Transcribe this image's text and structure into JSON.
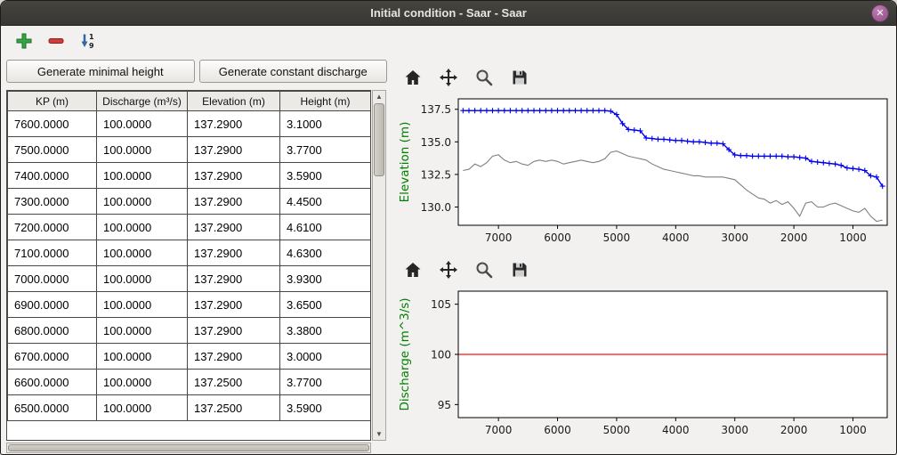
{
  "window": {
    "title": "Initial condition - Saar - Saar",
    "close_glyph": "✕"
  },
  "main_toolbar": {
    "icons": [
      "add-plus-icon",
      "remove-minus-icon",
      "sort-numeric-icon"
    ],
    "sort_top": "1",
    "sort_bottom": "9"
  },
  "left_panel": {
    "buttons": {
      "minimal_height": "Generate minimal height",
      "constant_discharge": "Generate constant discharge"
    },
    "table": {
      "columns": [
        "KP (m)",
        "Discharge (m³/s)",
        "Elevation (m)",
        "Height (m)"
      ],
      "rows": [
        [
          "7600.0000",
          "100.0000",
          "137.2900",
          "3.1000"
        ],
        [
          "7500.0000",
          "100.0000",
          "137.2900",
          "3.7700"
        ],
        [
          "7400.0000",
          "100.0000",
          "137.2900",
          "3.5900"
        ],
        [
          "7300.0000",
          "100.0000",
          "137.2900",
          "4.4500"
        ],
        [
          "7200.0000",
          "100.0000",
          "137.2900",
          "4.6100"
        ],
        [
          "7100.0000",
          "100.0000",
          "137.2900",
          "4.6300"
        ],
        [
          "7000.0000",
          "100.0000",
          "137.2900",
          "3.9300"
        ],
        [
          "6900.0000",
          "100.0000",
          "137.2900",
          "3.6500"
        ],
        [
          "6800.0000",
          "100.0000",
          "137.2900",
          "3.3800"
        ],
        [
          "6700.0000",
          "100.0000",
          "137.2900",
          "3.0000"
        ],
        [
          "6600.0000",
          "100.0000",
          "137.2500",
          "3.7700"
        ],
        [
          "6500.0000",
          "100.0000",
          "137.2500",
          "3.5900"
        ]
      ]
    }
  },
  "plot_toolbars": {
    "icons": [
      "home-icon",
      "pan-icon",
      "zoom-icon",
      "save-icon"
    ]
  },
  "colors": {
    "water_blue": "#0000ee",
    "bed_gray": "#808080",
    "discharge_red": "#ff1111",
    "ylabel_green": "#008000"
  },
  "chart_data": [
    {
      "type": "line",
      "title": "",
      "xlabel": "",
      "ylabel": "Elevation (m)",
      "ylabel_color": "#008000",
      "xlim": [
        7680,
        420
      ],
      "ylim": [
        128.6,
        138.3
      ],
      "xticks": [
        7000,
        6000,
        5000,
        4000,
        3000,
        2000,
        1000
      ],
      "yticks": [
        137.5,
        135.0,
        132.5,
        130.0
      ],
      "yticklabels": [
        "137.5",
        "135.0",
        "132.5",
        "130.0"
      ],
      "grid": false,
      "legend": "none",
      "series": [
        {
          "name": "bed-elevation",
          "color": "#808080",
          "width": 1.1,
          "x0": 7600,
          "dx": -100,
          "y": [
            132.8,
            132.9,
            133.3,
            133.1,
            133.4,
            133.9,
            134.0,
            133.6,
            133.4,
            133.5,
            133.3,
            133.2,
            133.5,
            133.6,
            133.5,
            133.6,
            133.5,
            133.3,
            133.4,
            133.5,
            133.6,
            133.5,
            133.4,
            133.5,
            133.7,
            134.2,
            134.3,
            134.1,
            133.9,
            133.8,
            133.7,
            133.6,
            133.3,
            133.1,
            132.9,
            132.8,
            132.7,
            132.6,
            132.5,
            132.4,
            132.4,
            132.3,
            132.3,
            132.3,
            132.3,
            132.2,
            132.1,
            131.7,
            131.3,
            131.0,
            130.7,
            130.6,
            130.3,
            130.5,
            130.2,
            130.4,
            129.9,
            129.3,
            130.3,
            130.4,
            130.0,
            130.0,
            130.2,
            130.3,
            130.1,
            129.9,
            129.7,
            129.6,
            129.9,
            129.3,
            128.9,
            129.0
          ]
        },
        {
          "name": "water-elevation",
          "color": "#0000ee",
          "width": 1.4,
          "marker": "+",
          "x0": 7600,
          "dx": -100,
          "y": [
            137.4,
            137.4,
            137.4,
            137.4,
            137.4,
            137.4,
            137.4,
            137.4,
            137.4,
            137.4,
            137.4,
            137.4,
            137.4,
            137.4,
            137.4,
            137.4,
            137.4,
            137.4,
            137.4,
            137.4,
            137.4,
            137.4,
            137.4,
            137.4,
            137.4,
            137.35,
            137.1,
            136.4,
            135.95,
            135.9,
            135.85,
            135.3,
            135.25,
            135.2,
            135.2,
            135.15,
            135.1,
            135.1,
            135.05,
            135.0,
            135.0,
            134.95,
            134.9,
            134.9,
            134.85,
            134.4,
            134.0,
            133.95,
            133.95,
            133.9,
            133.9,
            133.9,
            133.9,
            133.9,
            133.9,
            133.85,
            133.85,
            133.8,
            133.75,
            133.5,
            133.45,
            133.4,
            133.35,
            133.3,
            133.2,
            133.0,
            132.95,
            132.9,
            132.8,
            132.4,
            132.3,
            131.6
          ]
        }
      ]
    },
    {
      "type": "line",
      "title": "",
      "xlabel": "",
      "ylabel": "Discharge (m^3/s)",
      "ylabel_color": "#008000",
      "xlim": [
        7680,
        420
      ],
      "ylim": [
        93.7,
        106.3
      ],
      "xticks": [
        7000,
        6000,
        5000,
        4000,
        3000,
        2000,
        1000
      ],
      "yticks": [
        105,
        100,
        95
      ],
      "yticklabels": [
        "105",
        "100",
        "95"
      ],
      "grid": false,
      "legend": "none",
      "series": [
        {
          "name": "discharge",
          "color": "#ff1111",
          "width": 1.3,
          "x": [
            7680,
            420
          ],
          "y": [
            100,
            100
          ]
        }
      ]
    }
  ]
}
